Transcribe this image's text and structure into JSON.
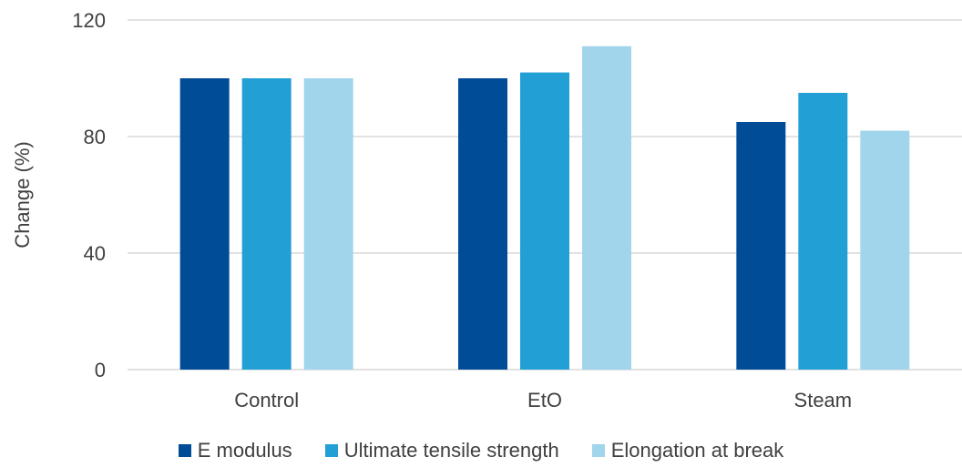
{
  "chart_data": {
    "type": "bar",
    "categories": [
      "Control",
      "EtO",
      "Steam"
    ],
    "series": [
      {
        "name": "E modulus",
        "values": [
          100,
          100,
          85
        ],
        "color": "#004C97"
      },
      {
        "name": "Ultimate tensile strength",
        "values": [
          100,
          102,
          95
        ],
        "color": "#22A0D6"
      },
      {
        "name": "Elongation at break",
        "values": [
          100,
          111,
          82
        ],
        "color": "#A0D5EC"
      }
    ],
    "title": "",
    "xlabel": "",
    "ylabel": "Change (%)",
    "ylim": [
      0,
      120
    ],
    "yticks": [
      "0",
      "40",
      "80",
      "120"
    ],
    "grid": true,
    "legend_position": "bottom"
  }
}
